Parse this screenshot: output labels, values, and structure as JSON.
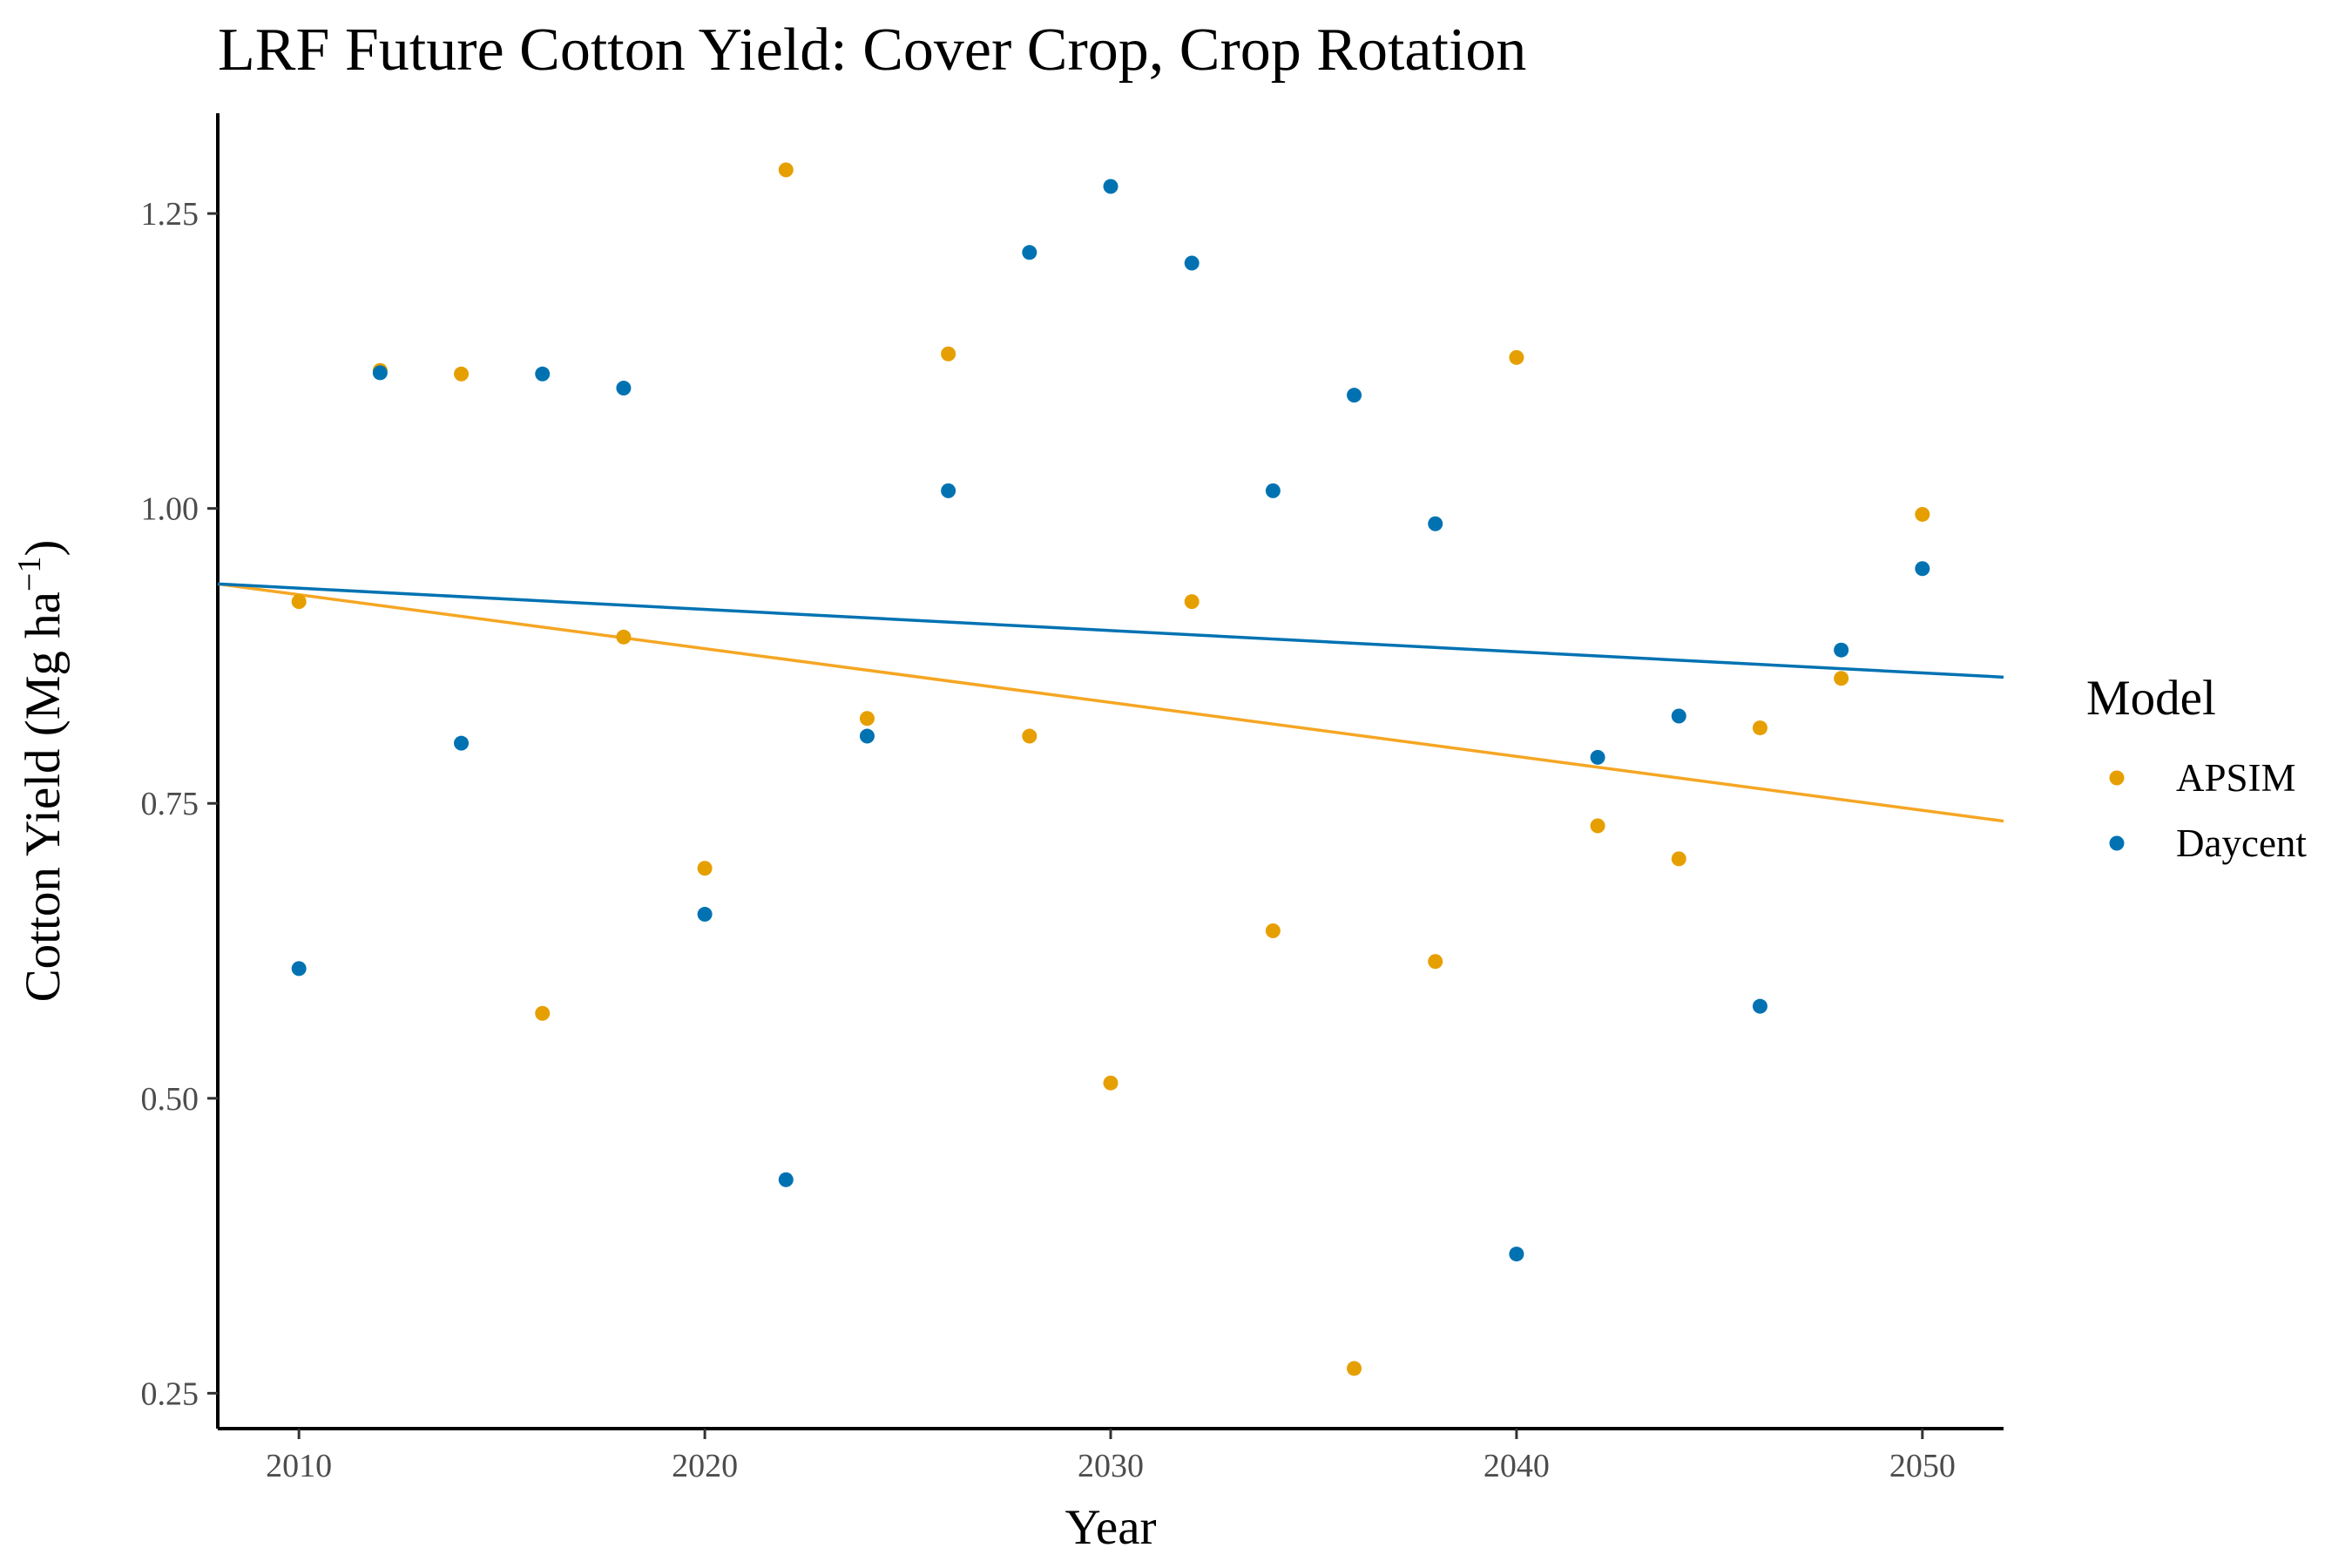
{
  "chart_data": {
    "type": "scatter",
    "title": "LRF Future Cotton Yield:  Cover Crop, Crop Rotation",
    "xlabel": "Year",
    "ylabel": "Cotton Yield (Mg ha",
    "ylabel_unit_superscript": "−1",
    "ylabel_close": ")",
    "xlim": [
      2008,
      2052
    ],
    "ylim": [
      0.22,
      1.335
    ],
    "x_ticks": [
      2010,
      2020,
      2030,
      2040,
      2050
    ],
    "x_tick_labels": [
      "2010",
      "2020",
      "2030",
      "2040",
      "2050"
    ],
    "y_ticks": [
      0.25,
      0.5,
      0.75,
      1.0,
      1.25
    ],
    "y_tick_labels": [
      "0.25",
      "0.50",
      "0.75",
      "1.00",
      "1.25"
    ],
    "grid": false,
    "legend": {
      "title": "Model",
      "placement": "right"
    },
    "series": [
      {
        "name": "APSIM",
        "color": "#E69F00",
        "trend_color": "#F5A623",
        "points": [
          {
            "x": 2010,
            "y": 0.921
          },
          {
            "x": 2012,
            "y": 1.117
          },
          {
            "x": 2014,
            "y": 1.114
          },
          {
            "x": 2016,
            "y": 0.572
          },
          {
            "x": 2018,
            "y": 0.891
          },
          {
            "x": 2020,
            "y": 0.695
          },
          {
            "x": 2022,
            "y": 1.287
          },
          {
            "x": 2024,
            "y": 0.822
          },
          {
            "x": 2026,
            "y": 1.131
          },
          {
            "x": 2028,
            "y": 0.807
          },
          {
            "x": 2030,
            "y": 0.513
          },
          {
            "x": 2032,
            "y": 0.921
          },
          {
            "x": 2034,
            "y": 0.642
          },
          {
            "x": 2036,
            "y": 0.271
          },
          {
            "x": 2038,
            "y": 0.616
          },
          {
            "x": 2040,
            "y": 1.128
          },
          {
            "x": 2042,
            "y": 0.731
          },
          {
            "x": 2044,
            "y": 0.703
          },
          {
            "x": 2046,
            "y": 0.814
          },
          {
            "x": 2048,
            "y": 0.856
          },
          {
            "x": 2050,
            "y": 0.995
          }
        ],
        "trend": {
          "x": [
            2008,
            2052
          ],
          "y": [
            0.936,
            0.735
          ]
        }
      },
      {
        "name": "Daycent",
        "color": "#0072B2",
        "trend_color": "#0072B2",
        "points": [
          {
            "x": 2010,
            "y": 0.61
          },
          {
            "x": 2012,
            "y": 1.115
          },
          {
            "x": 2014,
            "y": 0.801
          },
          {
            "x": 2016,
            "y": 1.114
          },
          {
            "x": 2018,
            "y": 1.102
          },
          {
            "x": 2020,
            "y": 0.656
          },
          {
            "x": 2022,
            "y": 0.431
          },
          {
            "x": 2024,
            "y": 0.807
          },
          {
            "x": 2026,
            "y": 1.015
          },
          {
            "x": 2028,
            "y": 1.217
          },
          {
            "x": 2030,
            "y": 1.273
          },
          {
            "x": 2032,
            "y": 1.208
          },
          {
            "x": 2034,
            "y": 1.015
          },
          {
            "x": 2036,
            "y": 1.096
          },
          {
            "x": 2038,
            "y": 0.987
          },
          {
            "x": 2040,
            "y": 0.368
          },
          {
            "x": 2042,
            "y": 0.789
          },
          {
            "x": 2044,
            "y": 0.824
          },
          {
            "x": 2046,
            "y": 0.578
          },
          {
            "x": 2048,
            "y": 0.88
          },
          {
            "x": 2050,
            "y": 0.949
          }
        ],
        "trend": {
          "x": [
            2008,
            2052
          ],
          "y": [
            0.936,
            0.857
          ]
        }
      }
    ]
  }
}
